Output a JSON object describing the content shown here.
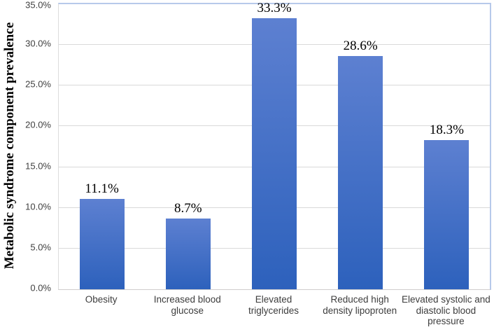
{
  "chart_data": {
    "type": "bar",
    "title": "",
    "ylabel": "Metabolic syndrome component prevalence",
    "xlabel": "",
    "ylim": [
      0,
      35
    ],
    "ytick_step": 5,
    "yticks": [
      "0.0%",
      "5.0%",
      "10.0%",
      "15.0%",
      "20.0%",
      "25.0%",
      "30.0%",
      "35.0%"
    ],
    "grid": true,
    "legend": "none",
    "categories": [
      "Obesity",
      "Increased blood glucose",
      "Elevated triglycerides",
      "Reduced  high density lipoproten",
      "Elevated systolic and diastolic blood pressure"
    ],
    "category_lines": [
      [
        "Obesity"
      ],
      [
        "Increased blood",
        "glucose"
      ],
      [
        "Elevated",
        "triglycerides"
      ],
      [
        "Reduced  high",
        "density lipoproten"
      ],
      [
        "Elevated systolic and",
        "diastolic blood",
        "pressure"
      ]
    ],
    "values": [
      11.1,
      8.7,
      33.3,
      28.6,
      18.3
    ],
    "data_labels": [
      "11.1%",
      "8.7%",
      "33.3%",
      "28.6%",
      "18.3%"
    ],
    "colors": {
      "bar_gradient_top": "#5d80d1",
      "bar_gradient_bottom": "#2d61bc",
      "gridline": "#d9d9d9",
      "plot_border": "#b7c9ea",
      "axis_line": "#cfcdcd",
      "tick_text": "#404040",
      "label_text": "#000000"
    }
  }
}
